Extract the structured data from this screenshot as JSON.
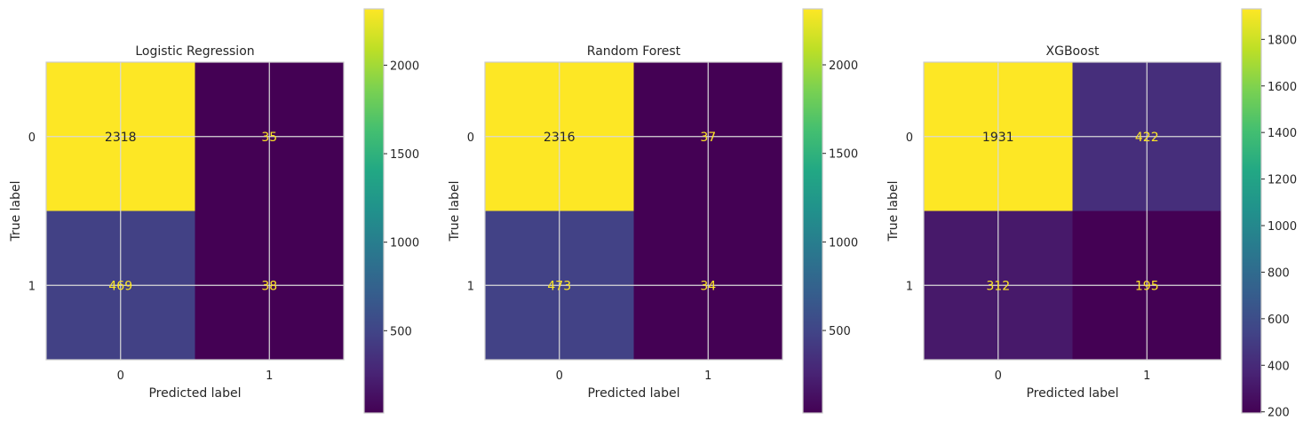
{
  "chart_data": [
    {
      "type": "heatmap",
      "title": "Logistic Regression",
      "xlabel": "Predicted label",
      "ylabel": "True label",
      "x_ticks": [
        "0",
        "1"
      ],
      "y_ticks": [
        "0",
        "1"
      ],
      "matrix": [
        [
          2318,
          35
        ],
        [
          469,
          38
        ]
      ],
      "colorbar": {
        "min": 35,
        "max": 2318,
        "ticks": [
          500,
          1000,
          1500,
          2000
        ]
      },
      "colormap": "viridis",
      "grid": true
    },
    {
      "type": "heatmap",
      "title": "Random Forest",
      "xlabel": "Predicted label",
      "ylabel": "True label",
      "x_ticks": [
        "0",
        "1"
      ],
      "y_ticks": [
        "0",
        "1"
      ],
      "matrix": [
        [
          2316,
          37
        ],
        [
          473,
          34
        ]
      ],
      "colorbar": {
        "min": 34,
        "max": 2316,
        "ticks": [
          500,
          1000,
          1500,
          2000
        ]
      },
      "colormap": "viridis",
      "grid": true
    },
    {
      "type": "heatmap",
      "title": "XGBoost",
      "xlabel": "Predicted label",
      "ylabel": "True label",
      "x_ticks": [
        "0",
        "1"
      ],
      "y_ticks": [
        "0",
        "1"
      ],
      "matrix": [
        [
          1931,
          422
        ],
        [
          312,
          195
        ]
      ],
      "colorbar": {
        "min": 195,
        "max": 1931,
        "ticks": [
          200,
          400,
          600,
          800,
          1000,
          1200,
          1400,
          1600,
          1800
        ]
      },
      "colormap": "viridis",
      "grid": true
    }
  ],
  "colors": {
    "text_on_light": "#262626",
    "text_on_dark": "#fde725",
    "grid": "#d9d9d9",
    "frame": "#cccccc"
  }
}
